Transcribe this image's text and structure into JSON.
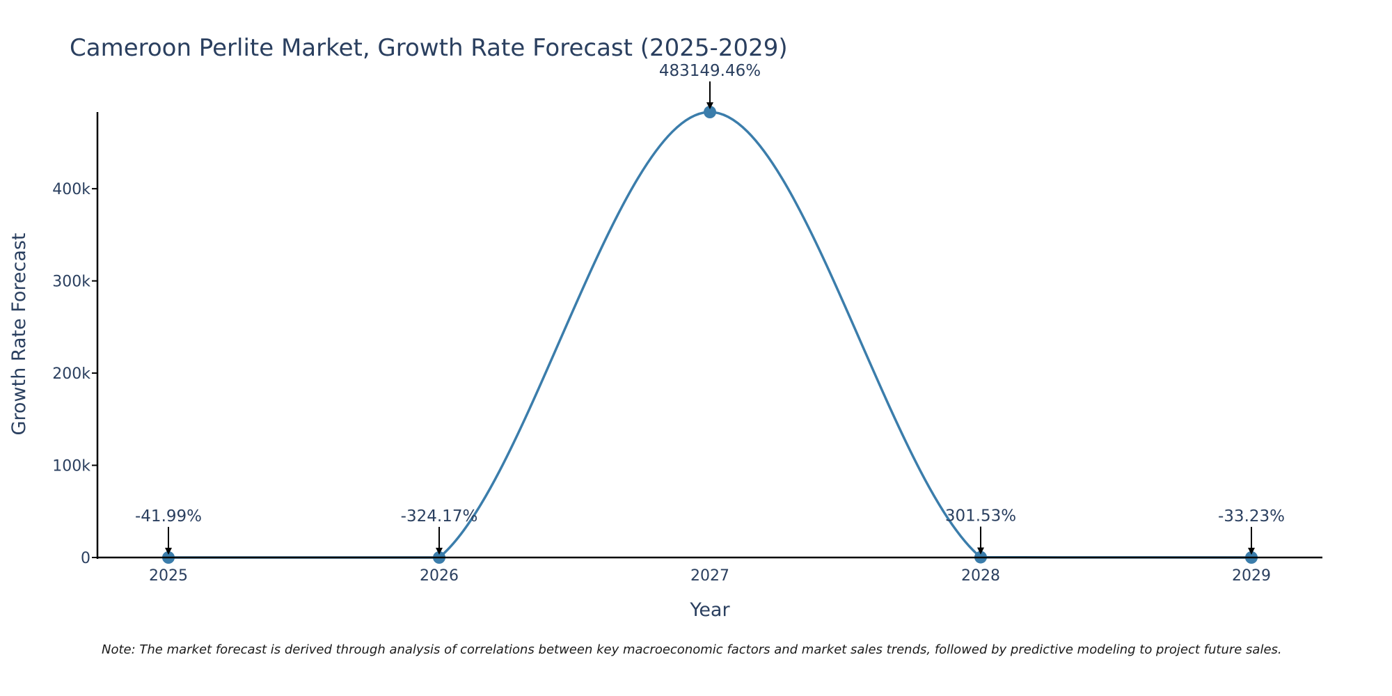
{
  "chart_data": {
    "type": "line",
    "title": "Cameroon Perlite Market, Growth Rate Forecast (2025-2029)",
    "xlabel": "Year",
    "ylabel": "Growth Rate Forecast",
    "categories": [
      "2025",
      "2026",
      "2027",
      "2028",
      "2029"
    ],
    "values": [
      -41.99,
      -324.17,
      483149.46,
      301.53,
      -33.23
    ],
    "data_labels": [
      "-41.99%",
      "-324.17%",
      "483149.46%",
      "301.53%",
      "-33.23%"
    ],
    "ylim": [
      0,
      483149.46
    ],
    "yticks": [
      0,
      100000,
      200000,
      300000,
      400000
    ],
    "ytick_labels": [
      "0",
      "100k",
      "200k",
      "300k",
      "400k"
    ],
    "line_color": "#3b7dab",
    "grid": false,
    "note": "Note: The market forecast is derived through analysis of correlations between key macroeconomic factors and market sales trends, followed by predictive modeling to project future sales."
  }
}
